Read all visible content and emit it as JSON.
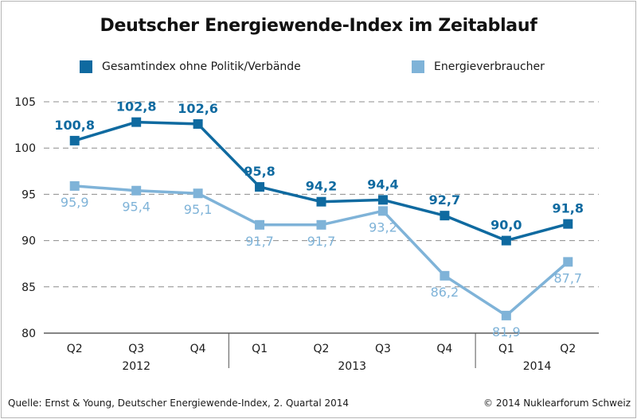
{
  "chart_data": {
    "type": "line",
    "title": "Deutscher Energiewende-Index im Zeitablauf",
    "categories": [
      "Q2",
      "Q3",
      "Q4",
      "Q1",
      "Q2",
      "Q3",
      "Q4",
      "Q1",
      "Q2"
    ],
    "years": [
      {
        "label": "2012",
        "span": [
          0,
          2
        ]
      },
      {
        "label": "2013",
        "span": [
          3,
          6
        ]
      },
      {
        "label": "2014",
        "span": [
          7,
          8
        ]
      }
    ],
    "series": [
      {
        "name": "Gesamtindex ohne Politik/Verbände",
        "color": "#0f6aa0",
        "values": [
          100.8,
          102.8,
          102.6,
          95.8,
          94.2,
          94.4,
          92.7,
          90.0,
          91.8
        ],
        "labels": [
          "100,8",
          "102,8",
          "102,6",
          "95,8",
          "94,2",
          "94,4",
          "92,7",
          "90,0",
          "91,8"
        ],
        "label_position": "above"
      },
      {
        "name": "Energieverbraucher",
        "color": "#7fb3d8",
        "values": [
          95.9,
          95.4,
          95.1,
          91.7,
          91.7,
          93.2,
          86.2,
          81.9,
          87.7
        ],
        "labels": [
          "95,9",
          "95,4",
          "95,1",
          "91,7",
          "91,7",
          "93,2",
          "86,2",
          "81,9",
          "87,7"
        ],
        "label_position": "below"
      }
    ],
    "ylim": [
      80,
      105
    ],
    "yticks": [
      "80",
      "85",
      "90",
      "95",
      "100",
      "105"
    ],
    "grid": true,
    "grid_style": "dashed",
    "legend_position": "top"
  },
  "footer": {
    "source": "Quelle: Ernst & Young, Deutscher Energiewende-Index, 2. Quartal 2014",
    "copyright": "© 2014 Nuklearforum Schweiz"
  }
}
